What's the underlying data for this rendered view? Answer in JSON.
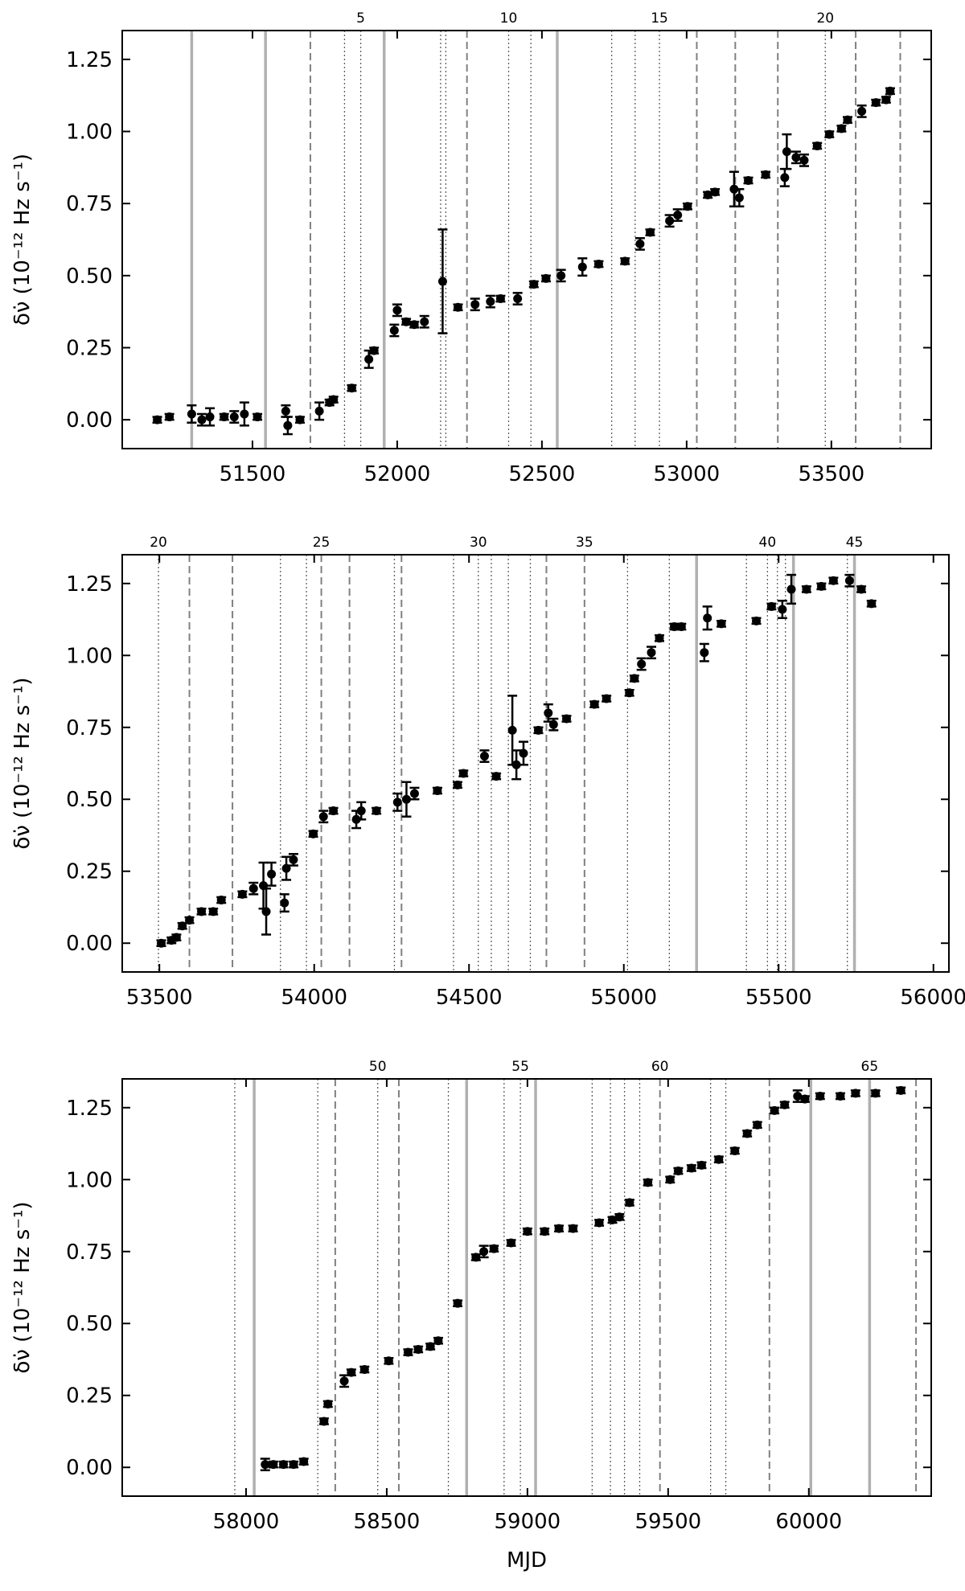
{
  "chart_data": [
    {
      "type": "scatter",
      "ylabel": "δν̇ (10⁻¹² Hz s⁻¹)",
      "color": "#000000",
      "x": [
        51171,
        51213,
        51290,
        51325,
        51353,
        51402,
        51437,
        51472,
        51517,
        51615,
        51622,
        51664,
        51731,
        51766,
        51780,
        51843,
        51902,
        51920,
        51990,
        52000,
        52031,
        52059,
        52094,
        52157,
        52210,
        52269,
        52322,
        52357,
        52416,
        52472,
        52514,
        52566,
        52640,
        52696,
        52787,
        52839,
        52874,
        52941,
        52969,
        53003,
        53073,
        53098,
        53164,
        53182,
        53213,
        53273,
        53339,
        53346,
        53378,
        53406,
        53451,
        53493,
        53535,
        53556,
        53605,
        53654,
        53689,
        53703
      ],
      "values": [
        0.0,
        0.01,
        0.02,
        0.0,
        0.01,
        0.01,
        0.01,
        0.02,
        0.01,
        0.03,
        -0.02,
        0.0,
        0.03,
        0.06,
        0.07,
        0.11,
        0.21,
        0.24,
        0.31,
        0.38,
        0.34,
        0.33,
        0.34,
        0.48,
        0.39,
        0.4,
        0.41,
        0.42,
        0.42,
        0.47,
        0.49,
        0.5,
        0.53,
        0.54,
        0.55,
        0.61,
        0.65,
        0.69,
        0.71,
        0.74,
        0.78,
        0.79,
        0.8,
        0.77,
        0.83,
        0.85,
        0.84,
        0.93,
        0.91,
        0.9,
        0.95,
        0.99,
        1.01,
        1.04,
        1.07,
        1.1,
        1.11,
        1.14
      ],
      "errors": [
        0.01,
        0.01,
        0.03,
        0.02,
        0.03,
        0.01,
        0.02,
        0.04,
        0.01,
        0.02,
        0.03,
        0.01,
        0.03,
        0.01,
        0.01,
        0.01,
        0.03,
        0.01,
        0.02,
        0.02,
        0.01,
        0.01,
        0.02,
        0.18,
        0.01,
        0.02,
        0.02,
        0.01,
        0.02,
        0.01,
        0.01,
        0.02,
        0.03,
        0.01,
        0.01,
        0.02,
        0.01,
        0.02,
        0.02,
        0.01,
        0.01,
        0.01,
        0.06,
        0.03,
        0.01,
        0.01,
        0.03,
        0.06,
        0.02,
        0.02,
        0.01,
        0.01,
        0.01,
        0.01,
        0.02,
        0.01,
        0.01,
        0.01
      ],
      "xlim": [
        51050,
        53845
      ],
      "ylim": [
        -0.1,
        1.35
      ],
      "xticks": [
        51500,
        52000,
        52500,
        53000,
        53500
      ],
      "yticks": [
        {
          "value": 0,
          "label": "0.00"
        },
        0.25,
        {
          "value": 0.5,
          "label": "0.50"
        },
        0.75,
        {
          "value": 1,
          "label": "1.00"
        },
        1.25
      ],
      "x2ticks": [
        {
          "value": 51874,
          "label": "5"
        },
        {
          "value": 52385,
          "label": "10"
        },
        {
          "value": 52906,
          "label": "15"
        },
        {
          "value": 53479,
          "label": "20"
        }
      ],
      "glitches": {
        "x": [
          51290,
          51545,
          51955,
          52553,
          51700,
          52241,
          53035,
          53168,
          53315,
          53584,
          53738,
          51818,
          51874,
          52150,
          52168,
          52385,
          52462,
          52741,
          52822,
          52906,
          53479
        ],
        "styles": [
          "solid",
          "solid",
          "solid",
          "solid",
          "dashed",
          "dashed",
          "dashed",
          "dashed",
          "dashed",
          "dashed",
          "dashed",
          "dotted",
          "dotted",
          "dotted",
          "dotted",
          "dotted",
          "dotted",
          "dotted",
          "dotted",
          "dotted",
          "dotted"
        ]
      },
      "line_colors": {
        "solid": "#b0b0b0",
        "dashed": "#808080",
        "dotted": "#606060"
      }
    },
    {
      "type": "scatter",
      "ylabel": "δν̇ (10⁻¹² Hz s⁻¹)",
      "color": "#000000",
      "x": [
        53506,
        53539,
        53555,
        53574,
        53597,
        53636,
        53674,
        53700,
        53768,
        53804,
        53836,
        53845,
        53862,
        53904,
        53910,
        53933,
        53997,
        54030,
        54062,
        54136,
        54152,
        54201,
        54269,
        54298,
        54324,
        54398,
        54463,
        54482,
        54550,
        54588,
        54640,
        54653,
        54676,
        54724,
        54756,
        54773,
        54815,
        54905,
        54944,
        55018,
        55034,
        55057,
        55089,
        55115,
        55163,
        55186,
        55260,
        55270,
        55315,
        55428,
        55477,
        55512,
        55541,
        55590,
        55638,
        55677,
        55729,
        55767,
        55800
      ],
      "values": [
        0.0,
        0.01,
        0.02,
        0.06,
        0.08,
        0.11,
        0.11,
        0.15,
        0.17,
        0.19,
        0.2,
        0.11,
        0.24,
        0.14,
        0.26,
        0.29,
        0.38,
        0.44,
        0.46,
        0.43,
        0.46,
        0.46,
        0.49,
        0.5,
        0.52,
        0.53,
        0.55,
        0.59,
        0.65,
        0.58,
        0.74,
        0.62,
        0.66,
        0.74,
        0.8,
        0.76,
        0.78,
        0.83,
        0.85,
        0.87,
        0.92,
        0.97,
        1.01,
        1.06,
        1.1,
        1.1,
        1.01,
        1.13,
        1.11,
        1.12,
        1.17,
        1.16,
        1.23,
        1.23,
        1.24,
        1.26,
        1.26,
        1.23,
        1.18
      ],
      "errors": [
        0.01,
        0.01,
        0.01,
        0.01,
        0.01,
        0.01,
        0.01,
        0.01,
        0.01,
        0.02,
        0.08,
        0.08,
        0.04,
        0.03,
        0.04,
        0.02,
        0.01,
        0.02,
        0.01,
        0.03,
        0.03,
        0.01,
        0.03,
        0.06,
        0.02,
        0.01,
        0.01,
        0.01,
        0.02,
        0.01,
        0.12,
        0.05,
        0.04,
        0.01,
        0.03,
        0.02,
        0.01,
        0.01,
        0.01,
        0.01,
        0.01,
        0.02,
        0.02,
        0.01,
        0.01,
        0.01,
        0.03,
        0.04,
        0.01,
        0.01,
        0.01,
        0.03,
        0.05,
        0.01,
        0.01,
        0.01,
        0.02,
        0.01,
        0.01
      ],
      "xlim": [
        53380,
        56050
      ],
      "ylim": [
        -0.1,
        1.35
      ],
      "xticks": [
        53500,
        54000,
        54500,
        55000,
        55500,
        56000
      ],
      "yticks": [
        {
          "value": 0,
          "label": "0.00"
        },
        0.25,
        {
          "value": 0.5,
          "label": "0.50"
        },
        0.75,
        {
          "value": 1,
          "label": "1.00"
        },
        1.25
      ],
      "x2ticks": [
        {
          "value": 53497,
          "label": "20"
        },
        {
          "value": 54023,
          "label": "25"
        },
        {
          "value": 54530,
          "label": "30"
        },
        {
          "value": 54873,
          "label": "35"
        },
        {
          "value": 55464,
          "label": "40"
        },
        {
          "value": 55745,
          "label": "45"
        }
      ],
      "glitches": {
        "x": [
          53497,
          53597,
          53736,
          53891,
          53975,
          54023,
          54114,
          54259,
          54282,
          54450,
          54530,
          54572,
          54627,
          54698,
          54750,
          54873,
          55012,
          55147,
          55235,
          55396,
          55464,
          55496,
          55522,
          55548,
          55722,
          55745
        ],
        "styles": [
          "dotted",
          "dashed",
          "dashed",
          "dotted",
          "dotted",
          "dashed",
          "dashed",
          "dotted",
          "dashed",
          "dotted",
          "dotted",
          "dotted",
          "dotted",
          "dotted",
          "dashed",
          "dashed",
          "dotted",
          "dotted",
          "solid",
          "dotted",
          "dotted",
          "dotted",
          "dotted",
          "solid",
          "dotted",
          "solid"
        ]
      },
      "line_colors": {
        "solid": "#b0b0b0",
        "dashed": "#808080",
        "dotted": "#606060"
      }
    },
    {
      "type": "scatter",
      "ylabel": "δν̇ (10⁻¹² Hz s⁻¹)",
      "xlabel": "MJD",
      "color": "#000000",
      "x": [
        58068,
        58097,
        58133,
        58169,
        58205,
        58277,
        58291,
        58349,
        58374,
        58421,
        58507,
        58576,
        58612,
        58655,
        58683,
        58752,
        58817,
        58845,
        58881,
        58942,
        59000,
        59061,
        59112,
        59162,
        59255,
        59302,
        59327,
        59363,
        59428,
        59507,
        59536,
        59583,
        59619,
        59680,
        59737,
        59781,
        59817,
        59878,
        59914,
        59960,
        59986,
        60040,
        60112,
        60166,
        60237,
        60327
      ],
      "values": [
        0.01,
        0.01,
        0.01,
        0.01,
        0.02,
        0.16,
        0.22,
        0.3,
        0.33,
        0.34,
        0.37,
        0.4,
        0.41,
        0.42,
        0.44,
        0.57,
        0.73,
        0.75,
        0.76,
        0.78,
        0.82,
        0.82,
        0.83,
        0.83,
        0.85,
        0.86,
        0.87,
        0.92,
        0.99,
        1.0,
        1.03,
        1.04,
        1.05,
        1.07,
        1.1,
        1.16,
        1.19,
        1.24,
        1.26,
        1.29,
        1.28,
        1.29,
        1.29,
        1.3,
        1.3,
        1.31
      ],
      "errors": [
        0.02,
        0.01,
        0.01,
        0.01,
        0.01,
        0.01,
        0.01,
        0.02,
        0.01,
        0.01,
        0.01,
        0.01,
        0.01,
        0.01,
        0.01,
        0.01,
        0.01,
        0.02,
        0.01,
        0.01,
        0.01,
        0.01,
        0.01,
        0.01,
        0.01,
        0.01,
        0.01,
        0.01,
        0.01,
        0.01,
        0.01,
        0.01,
        0.01,
        0.01,
        0.01,
        0.01,
        0.01,
        0.01,
        0.01,
        0.02,
        0.01,
        0.01,
        0.01,
        0.01,
        0.01,
        0.01
      ],
      "xlim": [
        57560,
        60435
      ],
      "ylim": [
        -0.1,
        1.35
      ],
      "xticks": [
        58000,
        58500,
        59000,
        59500,
        60000
      ],
      "yticks": [
        {
          "value": 0,
          "label": "0.00"
        },
        0.25,
        {
          "value": 0.5,
          "label": "0.50"
        },
        0.75,
        {
          "value": 1,
          "label": "1.00"
        },
        1.25
      ],
      "x2ticks": [
        {
          "value": 58468,
          "label": "50"
        },
        {
          "value": 58975,
          "label": "55"
        },
        {
          "value": 59471,
          "label": "60"
        },
        {
          "value": 60216,
          "label": "65"
        }
      ],
      "glitches": {
        "x": [
          57960,
          58029,
          58255,
          58317,
          58468,
          58543,
          58719,
          58784,
          58917,
          58975,
          59029,
          59230,
          59295,
          59345,
          59399,
          59471,
          59651,
          59705,
          59860,
          60007,
          60216,
          60381
        ],
        "styles": [
          "dotted",
          "solid",
          "dotted",
          "dashed",
          "dotted",
          "dashed",
          "dotted",
          "solid",
          "dotted",
          "dotted",
          "solid",
          "dotted",
          "dotted",
          "dotted",
          "dotted",
          "dashed",
          "dotted",
          "dotted",
          "dashed",
          "solid",
          "solid",
          "dashed"
        ]
      },
      "line_colors": {
        "solid": "#b0b0b0",
        "dashed": "#808080",
        "dotted": "#606060"
      }
    }
  ]
}
